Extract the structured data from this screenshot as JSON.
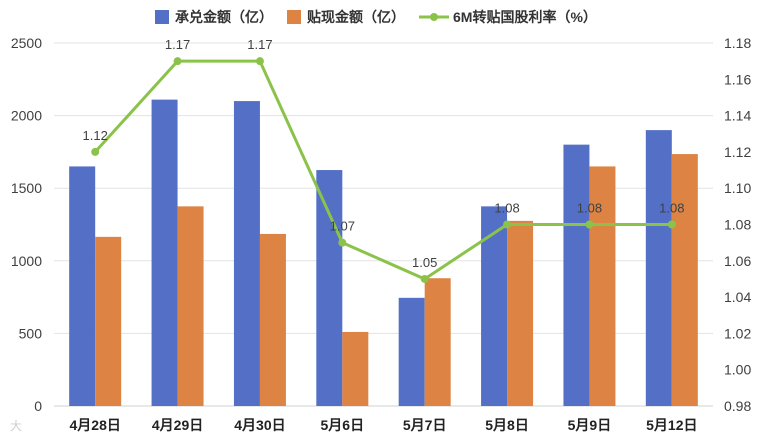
{
  "chart_data": {
    "type": "bar",
    "categories": [
      "4月28日",
      "4月29日",
      "4月30日",
      "5月6日",
      "5月7日",
      "5月8日",
      "5月9日",
      "5月12日"
    ],
    "series": [
      {
        "name": "承兑金额（亿）",
        "type": "bar",
        "axis": "left",
        "color": "#5470c6",
        "values": [
          1650,
          2110,
          2100,
          1625,
          745,
          1375,
          1800,
          1900
        ]
      },
      {
        "name": "贴现金额（亿）",
        "type": "bar",
        "axis": "left",
        "color": "#dd8444",
        "values": [
          1165,
          1375,
          1185,
          510,
          880,
          1275,
          1650,
          1735
        ]
      },
      {
        "name": "6M转贴国股利率（%）",
        "type": "line",
        "axis": "right",
        "color": "#8bc34a",
        "values": [
          1.12,
          1.17,
          1.17,
          1.07,
          1.05,
          1.08,
          1.08,
          1.08
        ],
        "labels": [
          "1.12",
          "1.17",
          "1.17",
          "1.07",
          "1.05",
          "1.08",
          "1.08",
          "1.08"
        ]
      }
    ],
    "y_left": {
      "min": 0,
      "max": 2500,
      "step": 500,
      "ticks": [
        "0",
        "500",
        "1000",
        "1500",
        "2000",
        "2500"
      ]
    },
    "y_right": {
      "min": 0.98,
      "max": 1.18,
      "step": 0.02,
      "ticks": [
        "0.98",
        "1.00",
        "1.02",
        "1.04",
        "1.06",
        "1.08",
        "1.10",
        "1.12",
        "1.14",
        "1.16",
        "1.18"
      ]
    },
    "grid": true,
    "legend_position": "top-center"
  },
  "watermark": "大"
}
